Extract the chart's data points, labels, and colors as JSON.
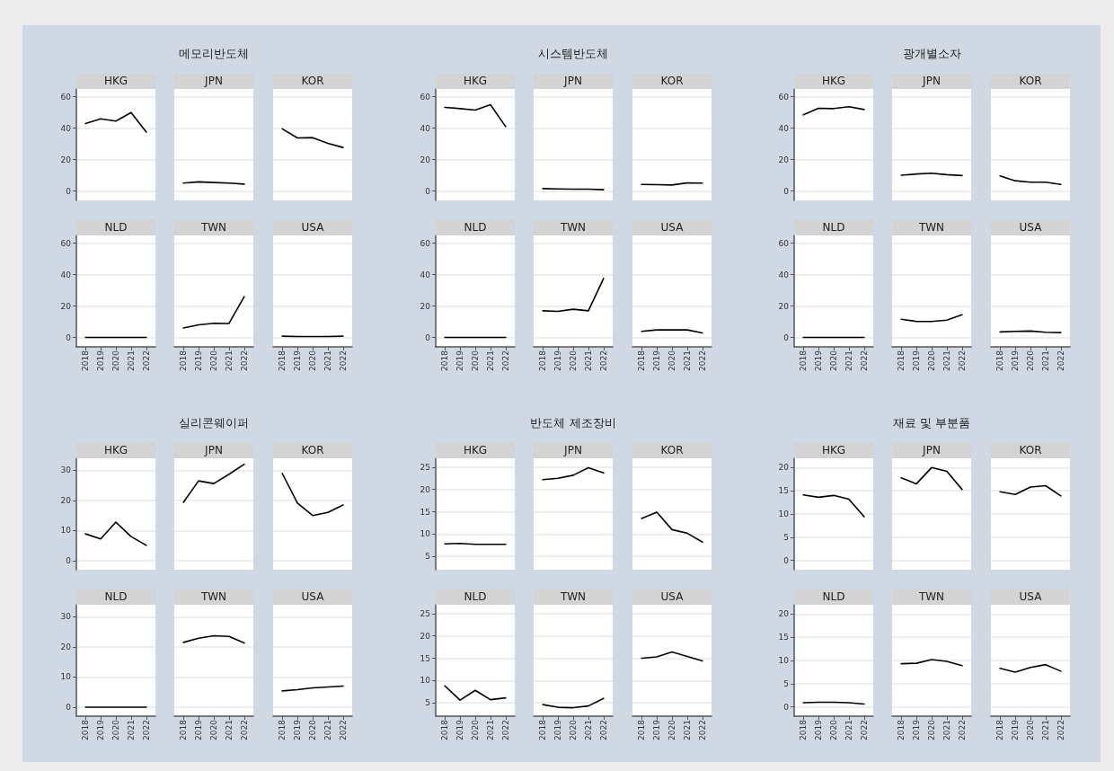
{
  "chart_data": [
    {
      "type": "line",
      "title": "HKG",
      "x": [
        2018,
        2019,
        2020,
        2021,
        2022
      ],
      "values": [
        43,
        46,
        44.5,
        50,
        37.5
      ],
      "color": "#000000",
      "xlim": [
        2017.4,
        2022.6
      ],
      "xticks": [
        2018,
        2019,
        2020,
        2021,
        2022
      ],
      "ylim": [
        -6,
        65
      ],
      "yticks": [
        0,
        20,
        40,
        60
      ],
      "grid": "y",
      "tick_labels": "y"
    },
    {
      "type": "line",
      "subtitle": "메모리반도체",
      "title": "JPN",
      "x": [
        2018,
        2019,
        2020,
        2021,
        2022
      ],
      "values": [
        5,
        5.8,
        5.4,
        5,
        4.4
      ],
      "color": "#000000",
      "xlim": [
        2017.4,
        2022.6
      ],
      "xticks": [
        2018,
        2019,
        2020,
        2021,
        2022
      ],
      "ylim": [
        -6,
        65
      ],
      "yticks": [
        0,
        20,
        40,
        60
      ],
      "grid": "y",
      "tick_labels": false
    },
    {
      "type": "line",
      "title": "KOR",
      "x": [
        2018,
        2019,
        2020,
        2021,
        2022
      ],
      "values": [
        39.6,
        33.8,
        34,
        30.4,
        27.7
      ],
      "color": "#000000",
      "xlim": [
        2017.4,
        2022.6
      ],
      "xticks": [
        2018,
        2019,
        2020,
        2021,
        2022
      ],
      "ylim": [
        -6,
        65
      ],
      "yticks": [
        0,
        20,
        40,
        60
      ],
      "grid": "y",
      "tick_labels": false
    },
    {
      "type": "line",
      "title": "NLD",
      "x": [
        2018,
        2019,
        2020,
        2021,
        2022
      ],
      "values": [
        0,
        0,
        0,
        0,
        0
      ],
      "color": "#000000",
      "xlim": [
        2017.4,
        2022.6
      ],
      "xticks": [
        2018,
        2019,
        2020,
        2021,
        2022
      ],
      "ylim": [
        -6,
        65
      ],
      "yticks": [
        0,
        20,
        40,
        60
      ],
      "grid": "y"
    },
    {
      "type": "line",
      "title": "TWN",
      "x": [
        2018,
        2019,
        2020,
        2021,
        2022
      ],
      "values": [
        6,
        8,
        9,
        8.9,
        26
      ],
      "color": "#000000",
      "xlim": [
        2017.4,
        2022.6
      ],
      "xticks": [
        2018,
        2019,
        2020,
        2021,
        2022
      ],
      "ylim": [
        -6,
        65
      ],
      "yticks": [
        0,
        20,
        40,
        60
      ],
      "grid": "y",
      "tick_labels": "x"
    },
    {
      "type": "line",
      "title": "USA",
      "x": [
        2018,
        2019,
        2020,
        2021,
        2022
      ],
      "values": [
        0.8,
        0.6,
        0.6,
        0.6,
        0.8
      ],
      "color": "#000000",
      "xlim": [
        2017.4,
        2022.6
      ],
      "xticks": [
        2018,
        2019,
        2020,
        2021,
        2022
      ],
      "ylim": [
        -6,
        65
      ],
      "yticks": [
        0,
        20,
        40,
        60
      ],
      "grid": "y",
      "tick_labels": "x"
    },
    {
      "type": "line",
      "title": "HKG",
      "x": [
        2018,
        2019,
        2020,
        2021,
        2022
      ],
      "values": [
        53.3,
        52.5,
        51.5,
        55,
        41
      ],
      "color": "#000000",
      "xlim": [
        2017.4,
        2022.6
      ],
      "xticks": [
        2018,
        2019,
        2020,
        2021,
        2022
      ],
      "ylim": [
        -6,
        65
      ],
      "yticks": [
        0,
        20,
        40,
        60
      ],
      "grid": "y",
      "tick_labels": "y"
    },
    {
      "type": "line",
      "subtitle": "시스템반도체",
      "title": "JPN",
      "x": [
        2018,
        2019,
        2020,
        2021,
        2022
      ],
      "values": [
        1.5,
        1.3,
        1.2,
        1.2,
        0.8
      ],
      "color": "#000000",
      "xlim": [
        2017.4,
        2022.6
      ],
      "xticks": [
        2018,
        2019,
        2020,
        2021,
        2022
      ],
      "ylim": [
        -6,
        65
      ],
      "yticks": [
        0,
        20,
        40,
        60
      ],
      "grid": "y",
      "tick_labels": false
    },
    {
      "type": "line",
      "title": "KOR",
      "x": [
        2018,
        2019,
        2020,
        2021,
        2022
      ],
      "values": [
        4.2,
        4,
        3.8,
        5.2,
        5
      ],
      "color": "#000000",
      "xlim": [
        2017.4,
        2022.6
      ],
      "xticks": [
        2018,
        2019,
        2020,
        2021,
        2022
      ],
      "ylim": [
        -6,
        65
      ],
      "yticks": [
        0,
        20,
        40,
        60
      ],
      "grid": "y",
      "tick_labels": false
    },
    {
      "type": "line",
      "title": "NLD",
      "x": [
        2018,
        2019,
        2020,
        2021,
        2022
      ],
      "values": [
        0,
        0,
        0,
        0,
        0
      ],
      "color": "#000000",
      "xlim": [
        2017.4,
        2022.6
      ],
      "xticks": [
        2018,
        2019,
        2020,
        2021,
        2022
      ],
      "ylim": [
        -6,
        65
      ],
      "yticks": [
        0,
        20,
        40,
        60
      ],
      "grid": "y"
    },
    {
      "type": "line",
      "title": "TWN",
      "x": [
        2018,
        2019,
        2020,
        2021,
        2022
      ],
      "values": [
        17,
        16.6,
        18,
        17,
        37.6
      ],
      "color": "#000000",
      "xlim": [
        2017.4,
        2022.6
      ],
      "xticks": [
        2018,
        2019,
        2020,
        2021,
        2022
      ],
      "ylim": [
        -6,
        65
      ],
      "yticks": [
        0,
        20,
        40,
        60
      ],
      "grid": "y",
      "tick_labels": "x"
    },
    {
      "type": "line",
      "title": "USA",
      "x": [
        2018,
        2019,
        2020,
        2021,
        2022
      ],
      "values": [
        3.9,
        4.8,
        4.8,
        4.8,
        2.9
      ],
      "color": "#000000",
      "xlim": [
        2017.4,
        2022.6
      ],
      "xticks": [
        2018,
        2019,
        2020,
        2021,
        2022
      ],
      "ylim": [
        -6,
        65
      ],
      "yticks": [
        0,
        20,
        40,
        60
      ],
      "grid": "y",
      "tick_labels": "x"
    },
    {
      "type": "line",
      "title": "HKG",
      "x": [
        2018,
        2019,
        2020,
        2021,
        2022
      ],
      "values": [
        48.5,
        52.7,
        52.5,
        53.7,
        51.9
      ],
      "color": "#000000",
      "xlim": [
        2017.4,
        2022.6
      ],
      "xticks": [
        2018,
        2019,
        2020,
        2021,
        2022
      ],
      "ylim": [
        -6,
        65
      ],
      "yticks": [
        0,
        20,
        40,
        60
      ],
      "grid": "y",
      "tick_labels": "y"
    },
    {
      "type": "line",
      "subtitle": "광개별소자",
      "title": "JPN",
      "x": [
        2018,
        2019,
        2020,
        2021,
        2022
      ],
      "values": [
        10,
        10.8,
        11.3,
        10.4,
        9.8
      ],
      "color": "#000000",
      "xlim": [
        2017.4,
        2022.6
      ],
      "xticks": [
        2018,
        2019,
        2020,
        2021,
        2022
      ],
      "ylim": [
        -6,
        65
      ],
      "yticks": [
        0,
        20,
        40,
        60
      ],
      "grid": "y",
      "tick_labels": false
    },
    {
      "type": "line",
      "title": "KOR",
      "x": [
        2018,
        2019,
        2020,
        2021,
        2022
      ],
      "values": [
        9.6,
        6.5,
        5.6,
        5.6,
        4.2
      ],
      "color": "#000000",
      "xlim": [
        2017.4,
        2022.6
      ],
      "xticks": [
        2018,
        2019,
        2020,
        2021,
        2022
      ],
      "ylim": [
        -6,
        65
      ],
      "yticks": [
        0,
        20,
        40,
        60
      ],
      "grid": "y",
      "tick_labels": false
    },
    {
      "type": "line",
      "title": "NLD",
      "x": [
        2018,
        2019,
        2020,
        2021,
        2022
      ],
      "values": [
        0,
        0,
        0,
        0,
        0
      ],
      "color": "#000000",
      "xlim": [
        2017.4,
        2022.6
      ],
      "xticks": [
        2018,
        2019,
        2020,
        2021,
        2022
      ],
      "ylim": [
        -6,
        65
      ],
      "yticks": [
        0,
        20,
        40,
        60
      ],
      "grid": "y"
    },
    {
      "type": "line",
      "title": "TWN",
      "x": [
        2018,
        2019,
        2020,
        2021,
        2022
      ],
      "values": [
        11.6,
        10.2,
        10.2,
        11,
        14.5
      ],
      "color": "#000000",
      "xlim": [
        2017.4,
        2022.6
      ],
      "xticks": [
        2018,
        2019,
        2020,
        2021,
        2022
      ],
      "ylim": [
        -6,
        65
      ],
      "yticks": [
        0,
        20,
        40,
        60
      ],
      "grid": "y",
      "tick_labels": "x"
    },
    {
      "type": "line",
      "title": "USA",
      "x": [
        2018,
        2019,
        2020,
        2021,
        2022
      ],
      "values": [
        3.5,
        3.9,
        4.1,
        3.3,
        3.1
      ],
      "color": "#000000",
      "xlim": [
        2017.4,
        2022.6
      ],
      "xticks": [
        2018,
        2019,
        2020,
        2021,
        2022
      ],
      "ylim": [
        -6,
        65
      ],
      "yticks": [
        0,
        20,
        40,
        60
      ],
      "grid": "y",
      "tick_labels": "x"
    },
    {
      "type": "line",
      "title": "HKG",
      "x": [
        2018,
        2019,
        2020,
        2021,
        2022
      ],
      "values": [
        8.9,
        7.2,
        12.8,
        8,
        5.1
      ],
      "color": "#000000",
      "xlim": [
        2017.4,
        2022.6
      ],
      "xticks": [
        2018,
        2019,
        2020,
        2021,
        2022
      ],
      "ylim": [
        -3,
        34
      ],
      "yticks": [
        0,
        10,
        20,
        30
      ],
      "grid": "y",
      "tick_labels": "y"
    },
    {
      "type": "line",
      "subtitle": "실리콘웨이퍼",
      "title": "JPN",
      "x": [
        2018,
        2019,
        2020,
        2021,
        2022
      ],
      "values": [
        19.4,
        26.5,
        25.6,
        28.7,
        32
      ],
      "color": "#000000",
      "xlim": [
        2017.4,
        2022.6
      ],
      "xticks": [
        2018,
        2019,
        2020,
        2021,
        2022
      ],
      "ylim": [
        -3,
        34
      ],
      "yticks": [
        0,
        10,
        20,
        30
      ],
      "grid": "y",
      "tick_labels": false
    },
    {
      "type": "line",
      "title": "KOR",
      "x": [
        2018,
        2019,
        2020,
        2021,
        2022
      ],
      "values": [
        29,
        19.1,
        15,
        16,
        18.5
      ],
      "color": "#000000",
      "xlim": [
        2017.4,
        2022.6
      ],
      "xticks": [
        2018,
        2019,
        2020,
        2021,
        2022
      ],
      "ylim": [
        -3,
        34
      ],
      "yticks": [
        0,
        10,
        20,
        30
      ],
      "grid": "y",
      "tick_labels": false
    },
    {
      "type": "line",
      "title": "NLD",
      "x": [
        2018,
        2019,
        2020,
        2021,
        2022
      ],
      "values": [
        0,
        0,
        0,
        0,
        0
      ],
      "color": "#000000",
      "xlim": [
        2017.4,
        2022.6
      ],
      "xticks": [
        2018,
        2019,
        2020,
        2021,
        2022
      ],
      "ylim": [
        -3,
        34
      ],
      "yticks": [
        0,
        10,
        20,
        30
      ],
      "grid": "y"
    },
    {
      "type": "line",
      "title": "TWN",
      "x": [
        2018,
        2019,
        2020,
        2021,
        2022
      ],
      "values": [
        21.5,
        22.9,
        23.7,
        23.5,
        21.3
      ],
      "color": "#000000",
      "xlim": [
        2017.4,
        2022.6
      ],
      "xticks": [
        2018,
        2019,
        2020,
        2021,
        2022
      ],
      "ylim": [
        -3,
        34
      ],
      "yticks": [
        0,
        10,
        20,
        30
      ],
      "grid": "y",
      "tick_labels": "x"
    },
    {
      "type": "line",
      "title": "USA",
      "x": [
        2018,
        2019,
        2020,
        2021,
        2022
      ],
      "values": [
        5.4,
        5.8,
        6.4,
        6.7,
        7
      ],
      "color": "#000000",
      "xlim": [
        2017.4,
        2022.6
      ],
      "xticks": [
        2018,
        2019,
        2020,
        2021,
        2022
      ],
      "ylim": [
        -3,
        34
      ],
      "yticks": [
        0,
        10,
        20,
        30
      ],
      "grid": "y",
      "tick_labels": "x"
    },
    {
      "type": "line",
      "title": "HKG",
      "x": [
        2018,
        2019,
        2020,
        2021,
        2022
      ],
      "values": [
        7.8,
        7.9,
        7.7,
        7.7,
        7.7
      ],
      "color": "#000000",
      "xlim": [
        2017.4,
        2022.6
      ],
      "xticks": [
        2018,
        2019,
        2020,
        2021,
        2022
      ],
      "ylim": [
        2,
        27
      ],
      "yticks": [
        5,
        10,
        15,
        20,
        25
      ],
      "grid": "y",
      "tick_labels": "y"
    },
    {
      "type": "line",
      "subtitle": "반도체 제조장비",
      "title": "JPN",
      "x": [
        2018,
        2019,
        2020,
        2021,
        2022
      ],
      "values": [
        22.2,
        22.5,
        23.2,
        24.9,
        23.7
      ],
      "color": "#000000",
      "xlim": [
        2017.4,
        2022.6
      ],
      "xticks": [
        2018,
        2019,
        2020,
        2021,
        2022
      ],
      "ylim": [
        2,
        27
      ],
      "yticks": [
        5,
        10,
        15,
        20,
        25
      ],
      "grid": "y",
      "tick_labels": false
    },
    {
      "type": "line",
      "title": "KOR",
      "x": [
        2018,
        2019,
        2020,
        2021,
        2022
      ],
      "values": [
        13.5,
        14.9,
        11,
        10.2,
        8.2
      ],
      "color": "#000000",
      "xlim": [
        2017.4,
        2022.6
      ],
      "xticks": [
        2018,
        2019,
        2020,
        2021,
        2022
      ],
      "ylim": [
        2,
        27
      ],
      "yticks": [
        5,
        10,
        15,
        20,
        25
      ],
      "grid": "y",
      "tick_labels": false
    },
    {
      "type": "line",
      "title": "NLD",
      "x": [
        2018,
        2019,
        2020,
        2021,
        2022
      ],
      "values": [
        8.8,
        5.6,
        7.8,
        5.7,
        6.1
      ],
      "color": "#000000",
      "xlim": [
        2017.4,
        2022.6
      ],
      "xticks": [
        2018,
        2019,
        2020,
        2021,
        2022
      ],
      "ylim": [
        2,
        27
      ],
      "yticks": [
        5,
        10,
        15,
        20,
        25
      ],
      "grid": "y"
    },
    {
      "type": "line",
      "title": "TWN",
      "x": [
        2018,
        2019,
        2020,
        2021,
        2022
      ],
      "values": [
        4.6,
        4,
        3.9,
        4.3,
        6
      ],
      "color": "#000000",
      "xlim": [
        2017.4,
        2022.6
      ],
      "xticks": [
        2018,
        2019,
        2020,
        2021,
        2022
      ],
      "ylim": [
        2,
        27
      ],
      "yticks": [
        5,
        10,
        15,
        20,
        25
      ],
      "grid": "y",
      "tick_labels": "x"
    },
    {
      "type": "line",
      "title": "USA",
      "x": [
        2018,
        2019,
        2020,
        2021,
        2022
      ],
      "values": [
        15,
        15.3,
        16.4,
        15.4,
        14.4
      ],
      "color": "#000000",
      "xlim": [
        2017.4,
        2022.6
      ],
      "xticks": [
        2018,
        2019,
        2020,
        2021,
        2022
      ],
      "ylim": [
        2,
        27
      ],
      "yticks": [
        5,
        10,
        15,
        20,
        25
      ],
      "grid": "y",
      "tick_labels": "x"
    },
    {
      "type": "line",
      "title": "HKG",
      "x": [
        2018,
        2019,
        2020,
        2021,
        2022
      ],
      "values": [
        14.1,
        13.6,
        14,
        13.2,
        9.4
      ],
      "color": "#000000",
      "xlim": [
        2017.4,
        2022.6
      ],
      "xticks": [
        2018,
        2019,
        2020,
        2021,
        2022
      ],
      "ylim": [
        -2,
        22
      ],
      "yticks": [
        0,
        5,
        10,
        15,
        20
      ],
      "grid": "y",
      "tick_labels": "y"
    },
    {
      "type": "line",
      "subtitle": "재료 및 부분품",
      "title": "JPN",
      "x": [
        2018,
        2019,
        2020,
        2021,
        2022
      ],
      "values": [
        17.8,
        16.5,
        20,
        19.2,
        15.3
      ],
      "color": "#000000",
      "xlim": [
        2017.4,
        2022.6
      ],
      "xticks": [
        2018,
        2019,
        2020,
        2021,
        2022
      ],
      "ylim": [
        -2,
        22
      ],
      "yticks": [
        0,
        5,
        10,
        15,
        20
      ],
      "grid": "y",
      "tick_labels": false
    },
    {
      "type": "line",
      "title": "KOR",
      "x": [
        2018,
        2019,
        2020,
        2021,
        2022
      ],
      "values": [
        14.8,
        14.2,
        15.8,
        16.1,
        13.9
      ],
      "color": "#000000",
      "xlim": [
        2017.4,
        2022.6
      ],
      "xticks": [
        2018,
        2019,
        2020,
        2021,
        2022
      ],
      "ylim": [
        -2,
        22
      ],
      "yticks": [
        0,
        5,
        10,
        15,
        20
      ],
      "grid": "y",
      "tick_labels": false
    },
    {
      "type": "line",
      "title": "NLD",
      "x": [
        2018,
        2019,
        2020,
        2021,
        2022
      ],
      "values": [
        0.9,
        1,
        1,
        0.9,
        0.6
      ],
      "color": "#000000",
      "xlim": [
        2017.4,
        2022.6
      ],
      "xticks": [
        2018,
        2019,
        2020,
        2021,
        2022
      ],
      "ylim": [
        -2,
        22
      ],
      "yticks": [
        0,
        5,
        10,
        15,
        20
      ],
      "grid": "y"
    },
    {
      "type": "line",
      "title": "TWN",
      "x": [
        2018,
        2019,
        2020,
        2021,
        2022
      ],
      "values": [
        9.3,
        9.4,
        10.2,
        9.8,
        8.9
      ],
      "color": "#000000",
      "xlim": [
        2017.4,
        2022.6
      ],
      "xticks": [
        2018,
        2019,
        2020,
        2021,
        2022
      ],
      "ylim": [
        -2,
        22
      ],
      "yticks": [
        0,
        5,
        10,
        15,
        20
      ],
      "grid": "y",
      "tick_labels": "x"
    },
    {
      "type": "line",
      "title": "USA",
      "x": [
        2018,
        2019,
        2020,
        2021,
        2022
      ],
      "values": [
        8.3,
        7.5,
        8.5,
        9.1,
        7.7
      ],
      "color": "#000000",
      "xlim": [
        2017.4,
        2022.6
      ],
      "xticks": [
        2018,
        2019,
        2020,
        2021,
        2022
      ],
      "ylim": [
        -2,
        22
      ],
      "yticks": [
        0,
        5,
        10,
        15,
        20
      ],
      "grid": "y",
      "tick_labels": "x"
    }
  ]
}
